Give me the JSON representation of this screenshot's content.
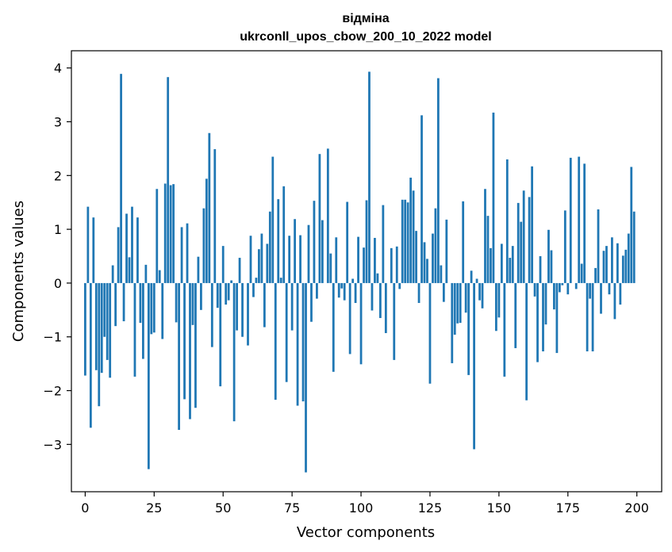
{
  "chart_data": {
    "type": "bar",
    "title_line1": "відміна",
    "title_line2": "ukrconll_upos_cbow_200_10_2022 model",
    "xlabel": "Vector components",
    "ylabel": "Components values",
    "xlim": [
      -5,
      209
    ],
    "ylim": [
      -3.88,
      4.32
    ],
    "xticks": [
      0,
      25,
      50,
      75,
      100,
      125,
      150,
      175,
      200
    ],
    "xtick_labels": [
      "0",
      "25",
      "50",
      "75",
      "100",
      "125",
      "150",
      "175",
      "200"
    ],
    "yticks": [
      -3,
      -2,
      -1,
      0,
      1,
      2,
      3,
      4
    ],
    "ytick_labels": [
      "−3",
      "−2",
      "−1",
      "0",
      "1",
      "2",
      "3",
      "4"
    ],
    "grid": false,
    "bar_color": "#1f77b4",
    "values": [
      -1.72,
      1.42,
      -2.69,
      1.22,
      -1.62,
      -2.29,
      -1.67,
      -1.0,
      -1.43,
      -1.76,
      0.33,
      -0.8,
      1.04,
      3.89,
      -0.71,
      1.29,
      0.48,
      1.42,
      -1.74,
      1.22,
      -0.74,
      -1.41,
      0.34,
      -3.46,
      -0.95,
      -0.92,
      1.75,
      0.24,
      -1.04,
      1.85,
      3.83,
      1.82,
      1.84,
      -0.73,
      -2.73,
      1.04,
      -2.16,
      1.11,
      -2.53,
      -0.78,
      -2.32,
      0.49,
      -0.5,
      1.39,
      1.94,
      2.79,
      -1.19,
      2.49,
      -0.46,
      -1.92,
      0.69,
      -0.4,
      -0.32,
      0.05,
      -2.57,
      -0.88,
      0.47,
      -1.0,
      0.0,
      -1.16,
      0.88,
      -0.26,
      0.1,
      0.63,
      0.92,
      -0.82,
      0.73,
      1.33,
      2.35,
      -2.17,
      1.56,
      0.1,
      1.8,
      -1.84,
      0.88,
      -0.88,
      1.19,
      -2.28,
      0.89,
      -2.2,
      -3.52,
      1.08,
      -0.72,
      1.53,
      -0.29,
      2.4,
      1.17,
      0.0,
      2.5,
      0.55,
      -1.65,
      0.85,
      -0.27,
      -0.1,
      -0.32,
      1.51,
      -1.32,
      0.08,
      -0.37,
      0.86,
      -1.51,
      0.66,
      1.54,
      3.93,
      -0.51,
      0.84,
      0.18,
      -0.65,
      1.45,
      -0.93,
      0.0,
      0.65,
      -1.43,
      0.68,
      -0.11,
      1.55,
      1.55,
      1.5,
      1.96,
      1.72,
      0.97,
      -0.37,
      3.12,
      0.76,
      0.45,
      -1.87,
      0.92,
      1.39,
      3.81,
      0.33,
      -0.35,
      1.18,
      0.0,
      -1.49,
      -0.96,
      -0.75,
      -0.74,
      1.52,
      -0.55,
      -1.71,
      0.23,
      -3.09,
      0.08,
      -0.32,
      -0.47,
      1.75,
      1.25,
      0.65,
      3.17,
      -0.89,
      -0.64,
      0.73,
      -1.74,
      2.3,
      0.47,
      0.69,
      -1.21,
      1.49,
      1.14,
      1.72,
      -2.18,
      1.6,
      2.17,
      -0.25,
      -1.47,
      0.5,
      -1.27,
      -0.77,
      0.99,
      0.61,
      -0.49,
      -1.3,
      -0.17,
      -0.04,
      1.35,
      -0.21,
      2.33,
      0.0,
      -0.11,
      2.35,
      0.36,
      2.22,
      -1.27,
      -0.29,
      -1.27,
      0.28,
      1.37,
      -0.57,
      0.6,
      0.69,
      -0.21,
      0.85,
      -0.67,
      0.74,
      -0.4,
      0.51,
      0.62,
      0.92,
      2.16,
      1.33
    ]
  }
}
